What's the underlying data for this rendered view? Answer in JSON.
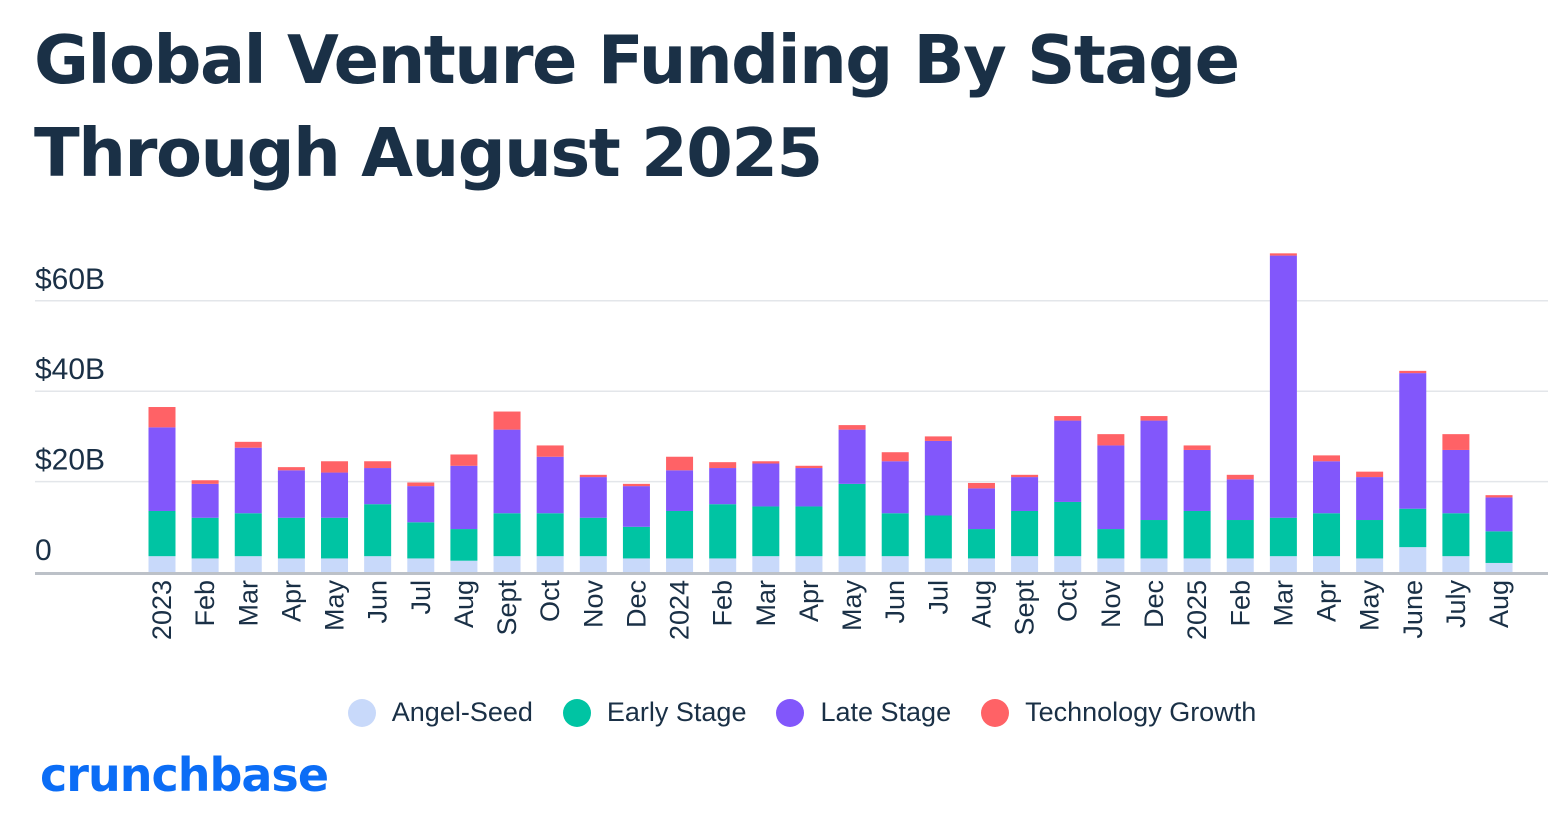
{
  "title": "Global Venture Funding By Stage Through August 2025",
  "brand": "crunchbase",
  "colors": {
    "angel_seed": "#c8d9fa",
    "early_stage": "#00c4a3",
    "late_stage": "#8257fb",
    "technology_growth": "#ff6266",
    "text": "#1a3046",
    "gridline": "#e3e6ea",
    "baseline": "#bcc1c8",
    "brand": "#0b6df6"
  },
  "chart_data": {
    "type": "bar",
    "stacked": true,
    "title": "Global Venture Funding By Stage Through August 2025",
    "xlabel": "",
    "ylabel": "",
    "ylim": [
      0,
      70
    ],
    "unit": "billion USD",
    "grid": true,
    "legend_position": "bottom",
    "y_ticks": [
      {
        "value": 0,
        "label": "0"
      },
      {
        "value": 20,
        "label": "$20B"
      },
      {
        "value": 40,
        "label": "$40B"
      },
      {
        "value": 60,
        "label": "$60B"
      }
    ],
    "categories": [
      "2023",
      "Feb",
      "Mar",
      "Apr",
      "May",
      "Jun",
      "Jul",
      "Aug",
      "Sept",
      "Oct",
      "Nov",
      "Dec",
      "2024",
      "Feb",
      "Mar",
      "Apr",
      "May",
      "Jun",
      "Jul",
      "Aug",
      "Sept",
      "Oct",
      "Nov",
      "Dec",
      "2025",
      "Feb",
      "Mar",
      "Apr",
      "May",
      "June",
      "July",
      "Aug"
    ],
    "series": [
      {
        "name": "Angel-Seed",
        "color": "#c8d9fa",
        "values": [
          3.5,
          3,
          3.5,
          3,
          3,
          3.5,
          3,
          2.5,
          3.5,
          3.5,
          3.5,
          3,
          3,
          3,
          3.5,
          3.5,
          3.5,
          3.5,
          3,
          3,
          3.5,
          3.5,
          3,
          3,
          3,
          3,
          3.5,
          3.5,
          3,
          5.5,
          3.5,
          2
        ]
      },
      {
        "name": "Early Stage",
        "color": "#00c4a3",
        "values": [
          10,
          9,
          9.5,
          9,
          9,
          11.5,
          8,
          7,
          9.5,
          9.5,
          8.5,
          7,
          10.5,
          12,
          11,
          11,
          16,
          9.5,
          9.5,
          6.5,
          10,
          12,
          6.5,
          8.5,
          10.5,
          8.5,
          8.5,
          9.5,
          8.5,
          8.5,
          9.5,
          7
        ]
      },
      {
        "name": "Late Stage",
        "color": "#8257fb",
        "values": [
          18.5,
          7.5,
          14.5,
          10.5,
          10,
          8,
          8,
          14,
          18.5,
          12.5,
          9,
          9,
          9,
          8,
          9.5,
          8.5,
          12,
          11.5,
          16.5,
          9,
          7.5,
          18,
          18.5,
          22,
          13.5,
          9,
          58,
          11.5,
          9.5,
          30,
          14,
          7.5
        ]
      },
      {
        "name": "Technology Growth",
        "color": "#ff6266",
        "values": [
          4.5,
          0.8,
          1.3,
          0.7,
          2.5,
          1.5,
          0.8,
          2.5,
          4,
          2.5,
          0.5,
          0.5,
          3,
          1.3,
          0.5,
          0.5,
          1,
          2,
          1,
          1.2,
          0.5,
          1,
          2.5,
          1,
          1,
          1,
          0.5,
          1.3,
          1.2,
          0.5,
          3.5,
          0.5
        ]
      }
    ]
  }
}
